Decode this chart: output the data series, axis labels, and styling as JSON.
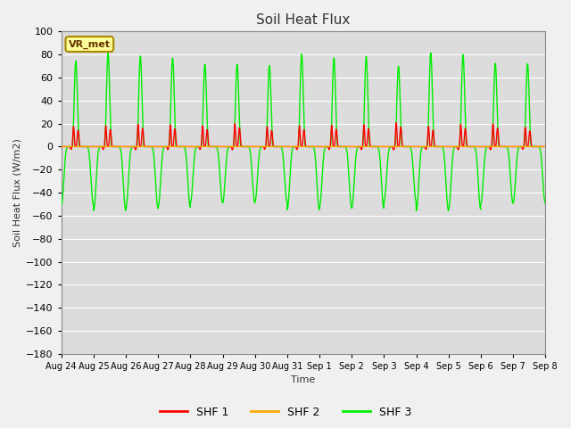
{
  "title": "Soil Heat Flux",
  "ylabel": "Soil Heat Flux (W/m2)",
  "xlabel": "Time",
  "ylim": [
    -180,
    100
  ],
  "yticks": [
    100,
    80,
    60,
    40,
    20,
    0,
    -20,
    -40,
    -60,
    -80,
    -100,
    -120,
    -140,
    -160,
    -180
  ],
  "xtick_labels": [
    "Aug 24",
    "Aug 25",
    "Aug 26",
    "Aug 27",
    "Aug 28",
    "Aug 29",
    "Aug 30",
    "Aug 31",
    "Sep 1",
    "Sep 2",
    "Sep 3",
    "Sep 4",
    "Sep 5",
    "Sep 6",
    "Sep 7",
    "Sep 8"
  ],
  "bg_color": "#dcdcdc",
  "fig_color": "#f0f0f0",
  "grid_color": "#ffffff",
  "shf1_color": "#ff0000",
  "shf2_color": "#ffaa00",
  "shf3_color": "#00ee00",
  "legend_labels": [
    "SHF 1",
    "SHF 2",
    "SHF 3"
  ],
  "annotation_text": "VR_met",
  "annotation_bg": "#ffff99",
  "annotation_border": "#aa8800",
  "n_days": 15,
  "points_per_day": 288
}
